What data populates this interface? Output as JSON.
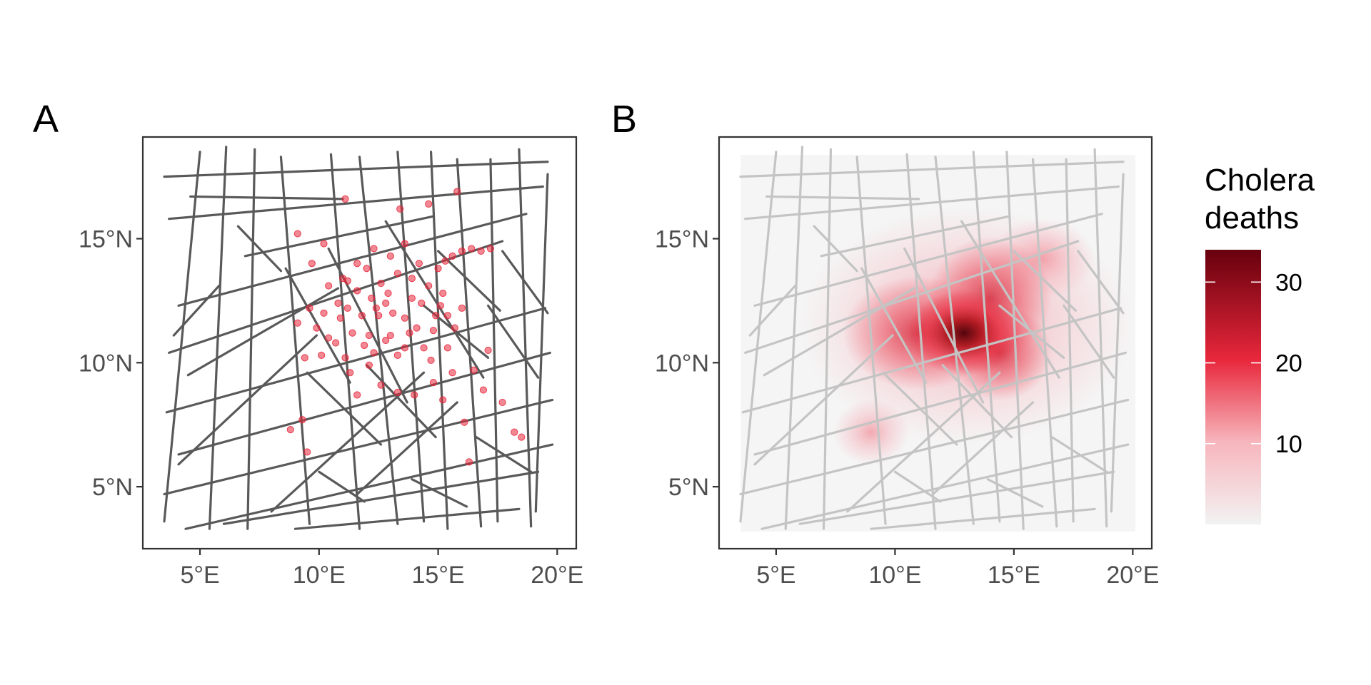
{
  "panels": [
    {
      "tag": "A",
      "type": "points"
    },
    {
      "tag": "B",
      "type": "density"
    }
  ],
  "axes": {
    "x_ticks": [
      "5°E",
      "10°E",
      "15°E",
      "20°E"
    ],
    "y_ticks": [
      "15°N",
      "10°N",
      "5°N"
    ],
    "x_values": [
      5,
      10,
      15,
      20
    ],
    "y_values": [
      15,
      10,
      5
    ],
    "xlim": [
      2.6,
      20.8
    ],
    "ylim": [
      2.5,
      19.1
    ]
  },
  "legend": {
    "title_line1": "Cholera",
    "title_line2": "deaths",
    "labels": [
      "30",
      "20",
      "10"
    ],
    "values": [
      30,
      20,
      10
    ],
    "range": [
      0,
      34
    ],
    "colors": {
      "low": "#f2f2f2",
      "mid": "#e8273b",
      "high": "#67000d"
    }
  },
  "colors": {
    "street_a": "#595959",
    "street_b": "#c4c4c4",
    "point": "#e8273b",
    "background": "#ffffff"
  },
  "chart_data": {
    "type": "scatter",
    "title": "",
    "xlabel": "",
    "ylabel": "",
    "xlim": [
      2.6,
      20.8
    ],
    "ylim": [
      2.5,
      19.1
    ],
    "grid": false,
    "points": [
      [
        8.8,
        7.3
      ],
      [
        9.3,
        7.7
      ],
      [
        9.5,
        6.4
      ],
      [
        9.1,
        11.6
      ],
      [
        9.6,
        12.2
      ],
      [
        9.9,
        11.4
      ],
      [
        10.2,
        12.0
      ],
      [
        10.4,
        11.0
      ],
      [
        10.7,
        10.8
      ],
      [
        10.9,
        11.8
      ],
      [
        10.1,
        10.3
      ],
      [
        11.3,
        9.6
      ],
      [
        11.6,
        8.7
      ],
      [
        11.1,
        10.2
      ],
      [
        11.4,
        11.2
      ],
      [
        11.8,
        11.9
      ],
      [
        12.1,
        11.1
      ],
      [
        12.3,
        10.4
      ],
      [
        12.5,
        11.9
      ],
      [
        12.8,
        12.4
      ],
      [
        13.0,
        11.1
      ],
      [
        13.3,
        10.3
      ],
      [
        13.6,
        11.8
      ],
      [
        13.9,
        12.6
      ],
      [
        14.1,
        11.4
      ],
      [
        14.4,
        10.6
      ],
      [
        14.7,
        10.1
      ],
      [
        14.9,
        11.9
      ],
      [
        15.2,
        12.8
      ],
      [
        15.4,
        10.6
      ],
      [
        15.7,
        11.4
      ],
      [
        16.0,
        12.2
      ],
      [
        12.0,
        13.8
      ],
      [
        12.3,
        14.6
      ],
      [
        12.6,
        13.2
      ],
      [
        13.0,
        14.3
      ],
      [
        13.3,
        13.6
      ],
      [
        13.6,
        14.8
      ],
      [
        13.9,
        13.4
      ],
      [
        14.2,
        14.0
      ],
      [
        14.6,
        13.1
      ],
      [
        15.0,
        13.8
      ],
      [
        15.3,
        14.1
      ],
      [
        15.6,
        14.3
      ],
      [
        16.0,
        14.5
      ],
      [
        16.4,
        14.6
      ],
      [
        16.8,
        14.5
      ],
      [
        17.2,
        14.6
      ],
      [
        12.9,
        12.8
      ],
      [
        12.2,
        12.6
      ],
      [
        11.6,
        12.9
      ],
      [
        10.8,
        12.4
      ],
      [
        10.4,
        13.1
      ],
      [
        11.0,
        13.4
      ],
      [
        9.7,
        14.0
      ],
      [
        9.4,
        10.2
      ],
      [
        12.6,
        9.1
      ],
      [
        13.3,
        8.8
      ],
      [
        14.0,
        8.7
      ],
      [
        14.8,
        9.2
      ],
      [
        15.2,
        8.5
      ],
      [
        15.6,
        9.6
      ],
      [
        16.5,
        9.7
      ],
      [
        17.1,
        10.5
      ],
      [
        18.2,
        7.2
      ],
      [
        18.5,
        7.0
      ],
      [
        17.7,
        8.4
      ],
      [
        16.1,
        7.6
      ],
      [
        16.9,
        8.9
      ],
      [
        16.3,
        6.0
      ],
      [
        13.6,
        10.6
      ],
      [
        12.8,
        10.9
      ],
      [
        12.4,
        12.2
      ],
      [
        11.9,
        10.7
      ],
      [
        11.2,
        12.2
      ],
      [
        13.1,
        12.0
      ],
      [
        14.3,
        12.4
      ],
      [
        14.8,
        11.3
      ],
      [
        15.4,
        11.9
      ],
      [
        13.8,
        11.2
      ],
      [
        12.1,
        9.9
      ],
      [
        11.6,
        14.0
      ],
      [
        11.1,
        16.6
      ],
      [
        13.4,
        16.2
      ],
      [
        14.6,
        16.4
      ],
      [
        15.8,
        16.9
      ],
      [
        9.1,
        15.2
      ],
      [
        10.2,
        14.8
      ],
      [
        11.2,
        13.3
      ],
      [
        15.1,
        12.3
      ]
    ],
    "density_peak": [
      12.9,
      11.2
    ]
  }
}
